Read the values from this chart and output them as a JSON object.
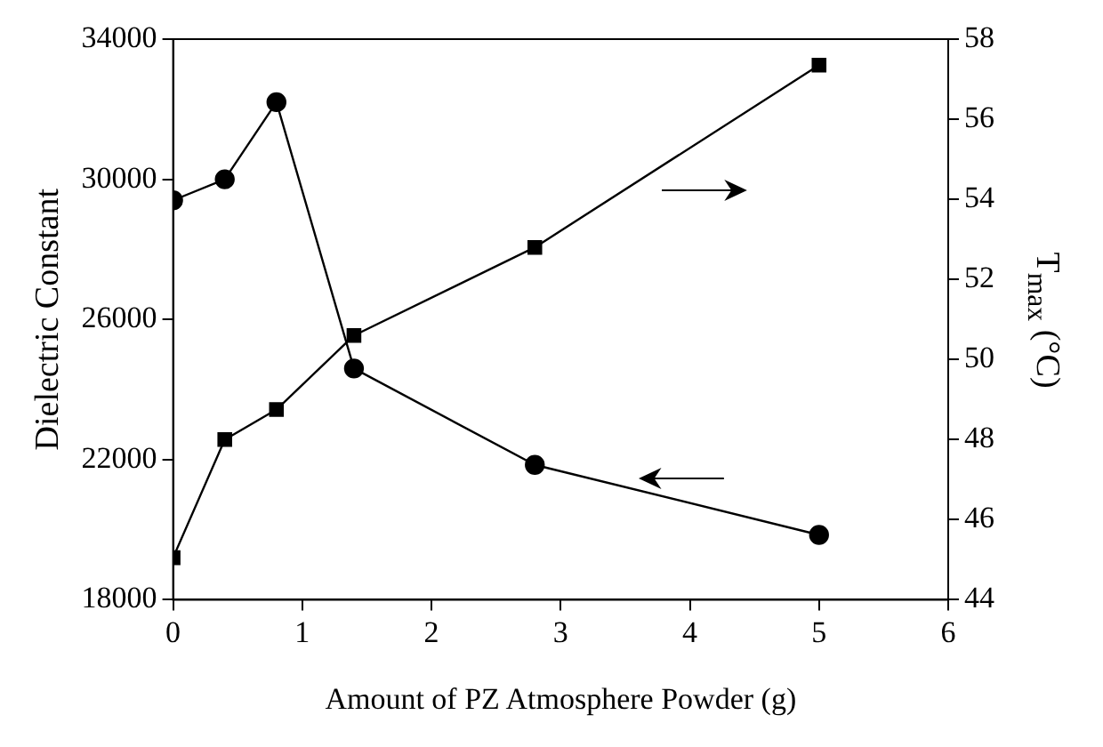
{
  "chart_data": {
    "type": "line",
    "xlabel": "Amount of PZ Atmosphere Powder (g)",
    "ylabel": "Dielectric Constant",
    "y2label": "T$_{max}$ (°C)",
    "x": [
      0,
      0.4,
      0.8,
      1.4,
      2.8,
      5
    ],
    "series": [
      {
        "color": "#000000",
        "marker": "circle",
        "values": [
          29400,
          30000,
          32200,
          24600,
          21850,
          19850
        ]
      },
      {
        "color": "#000000",
        "marker": "square",
        "axis": "y2",
        "values": [
          45.05,
          48.0,
          48.75,
          50.6,
          52.8,
          57.35
        ]
      }
    ],
    "xlim": [
      0,
      6
    ],
    "xticks": [
      0,
      1,
      2,
      3,
      4,
      5,
      6
    ],
    "ylim": [
      18000,
      34000
    ],
    "yticks": [
      18000,
      22000,
      26000,
      30000,
      34000
    ],
    "y2lim": [
      44,
      58
    ],
    "y2ticks": [
      44,
      46,
      48,
      50,
      52,
      54,
      56,
      58
    ],
    "grid": false,
    "legend": false
  }
}
